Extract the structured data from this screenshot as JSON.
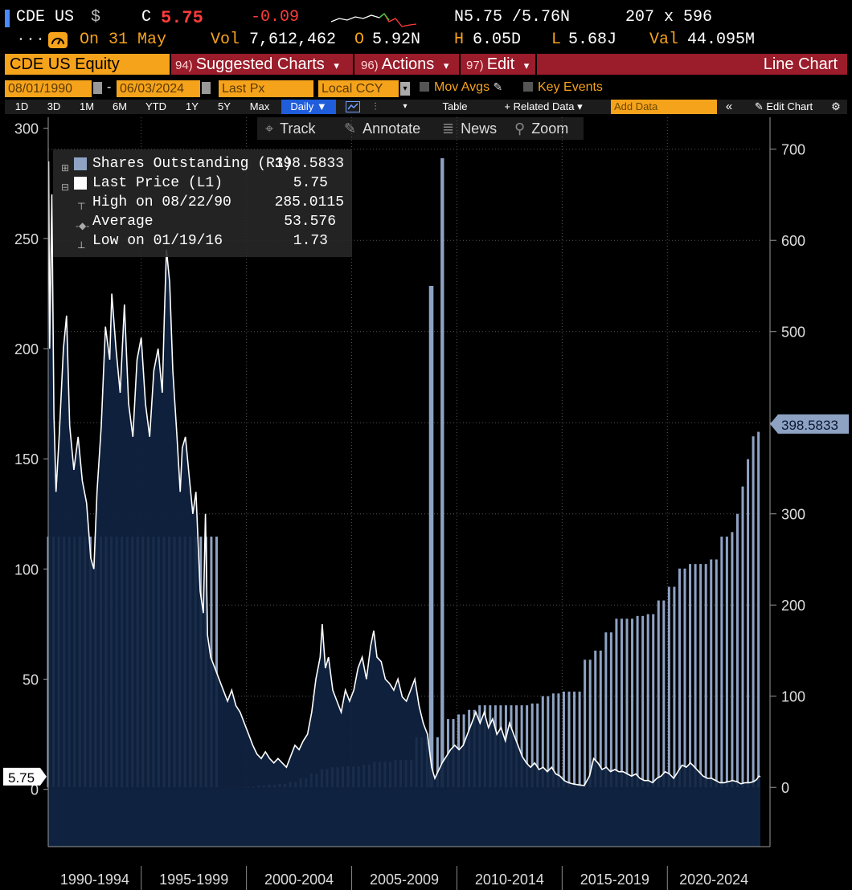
{
  "header": {
    "ticker": "CDE US",
    "currency_symbol": "$",
    "close_label": "C",
    "close_value": "5.75",
    "change": "-0.09",
    "bid_ask": "N5.75 /5.76N",
    "size": "207 x 596",
    "date_label": "On 31 May",
    "vol_label": "Vol",
    "vol_value": "7,612,462",
    "open_label": "O",
    "open_value": "5.92N",
    "high_label": "H",
    "high_value": "6.05D",
    "low_label": "L",
    "low_value": "5.68J",
    "val_label": "Val",
    "val_value": "44.095M",
    "dots": "....."
  },
  "menu": {
    "security": "CDE US Equity",
    "suggested_num": "94)",
    "suggested": "Suggested Charts",
    "actions_num": "96)",
    "actions": "Actions",
    "edit_num": "97)",
    "edit": "Edit",
    "chart_type": "Line Chart",
    "caret": "▾"
  },
  "controls": {
    "start_date": "08/01/1990",
    "dash": "-",
    "end_date": "06/03/2024",
    "field": "Last Px",
    "currency": "Local CCY",
    "mov_avgs": "Mov Avgs",
    "key_events": "Key Events"
  },
  "toolbar": {
    "periods": [
      "1D",
      "3D",
      "1M",
      "6M",
      "YTD",
      "1Y",
      "5Y",
      "Max"
    ],
    "frequency": "Daily ▼",
    "table": "Table",
    "related": "+ Related Data ▾",
    "add_data_placeholder": "Add Data",
    "edit_chart": "Edit Chart"
  },
  "chart_tools": {
    "track": "Track",
    "annotate": "Annotate",
    "news": "News",
    "zoom": "Zoom"
  },
  "legend": {
    "shares_label": "Shares Outstanding (R1)",
    "shares_value": "398.5833",
    "price_label": "Last Price (L1)",
    "price_value": "5.75",
    "high_label": "High on 08/22/90",
    "high_value": "285.0115",
    "avg_label": "Average",
    "avg_value": "53.576",
    "low_label": "Low on 01/19/16",
    "low_value": "1.73"
  },
  "colors": {
    "price_line": "#ffffff",
    "price_fill": "#0f2340",
    "shares_bars": "#8ea3c4",
    "accent_orange": "#f6a31c",
    "menu_red": "#9b1c2a"
  },
  "chart_data": {
    "type": "line",
    "left_axis": {
      "ticks": [
        0,
        50,
        100,
        150,
        200,
        250,
        300
      ],
      "ylim": [
        -26,
        305
      ]
    },
    "right_axis": {
      "ticks": [
        0,
        100,
        200,
        300,
        400,
        500,
        600,
        700
      ],
      "ylim": [
        -65,
        735
      ]
    },
    "x_categories": [
      "1990-1994",
      "1995-1999",
      "2000-2004",
      "2005-2009",
      "2010-2014",
      "2015-2019",
      "2020-2024"
    ],
    "x_range": [
      1990.58,
      2024.42
    ],
    "last_price_tag": "5.75",
    "shares_tag": "398.5833",
    "grid": "dotted",
    "series": [
      {
        "name": "Last Price (L1)",
        "axis": "left",
        "style": "line with filled area",
        "points": [
          [
            1990.6,
            285
          ],
          [
            1990.65,
            200
          ],
          [
            1990.75,
            270
          ],
          [
            1990.85,
            170
          ],
          [
            1990.95,
            135
          ],
          [
            1991.1,
            160
          ],
          [
            1991.3,
            200
          ],
          [
            1991.45,
            215
          ],
          [
            1991.6,
            165
          ],
          [
            1991.8,
            145
          ],
          [
            1992.0,
            160
          ],
          [
            1992.2,
            140
          ],
          [
            1992.4,
            130
          ],
          [
            1992.6,
            105
          ],
          [
            1992.75,
            100
          ],
          [
            1992.9,
            135
          ],
          [
            1993.1,
            165
          ],
          [
            1993.3,
            210
          ],
          [
            1993.5,
            195
          ],
          [
            1993.6,
            225
          ],
          [
            1993.8,
            200
          ],
          [
            1994.0,
            180
          ],
          [
            1994.2,
            220
          ],
          [
            1994.4,
            175
          ],
          [
            1994.6,
            160
          ],
          [
            1994.8,
            195
          ],
          [
            1995.0,
            205
          ],
          [
            1995.2,
            175
          ],
          [
            1995.4,
            160
          ],
          [
            1995.6,
            190
          ],
          [
            1995.8,
            200
          ],
          [
            1996.0,
            180
          ],
          [
            1996.1,
            215
          ],
          [
            1996.2,
            245
          ],
          [
            1996.35,
            230
          ],
          [
            1996.5,
            190
          ],
          [
            1996.7,
            160
          ],
          [
            1996.85,
            135
          ],
          [
            1996.95,
            155
          ],
          [
            1997.1,
            160
          ],
          [
            1997.3,
            140
          ],
          [
            1997.45,
            125
          ],
          [
            1997.6,
            135
          ],
          [
            1997.8,
            90
          ],
          [
            1997.95,
            80
          ],
          [
            1998.05,
            125
          ],
          [
            1998.15,
            70
          ],
          [
            1998.3,
            60
          ],
          [
            1998.5,
            55
          ],
          [
            1998.7,
            50
          ],
          [
            1998.9,
            45
          ],
          [
            1999.1,
            40
          ],
          [
            1999.3,
            45
          ],
          [
            1999.5,
            38
          ],
          [
            1999.7,
            35
          ],
          [
            1999.9,
            30
          ],
          [
            2000.1,
            25
          ],
          [
            2000.3,
            20
          ],
          [
            2000.5,
            16
          ],
          [
            2000.7,
            14
          ],
          [
            2000.9,
            17
          ],
          [
            2001.1,
            14
          ],
          [
            2001.3,
            12
          ],
          [
            2001.5,
            14
          ],
          [
            2001.7,
            12
          ],
          [
            2001.9,
            10
          ],
          [
            2002.1,
            15
          ],
          [
            2002.3,
            20
          ],
          [
            2002.5,
            18
          ],
          [
            2002.7,
            22
          ],
          [
            2002.9,
            25
          ],
          [
            2003.1,
            35
          ],
          [
            2003.3,
            50
          ],
          [
            2003.5,
            60
          ],
          [
            2003.6,
            75
          ],
          [
            2003.75,
            55
          ],
          [
            2003.9,
            60
          ],
          [
            2004.1,
            45
          ],
          [
            2004.3,
            40
          ],
          [
            2004.5,
            35
          ],
          [
            2004.7,
            45
          ],
          [
            2004.9,
            40
          ],
          [
            2005.1,
            45
          ],
          [
            2005.3,
            55
          ],
          [
            2005.5,
            60
          ],
          [
            2005.7,
            50
          ],
          [
            2005.9,
            65
          ],
          [
            2006.05,
            72
          ],
          [
            2006.2,
            60
          ],
          [
            2006.4,
            58
          ],
          [
            2006.6,
            50
          ],
          [
            2006.8,
            48
          ],
          [
            2007.0,
            45
          ],
          [
            2007.2,
            50
          ],
          [
            2007.4,
            42
          ],
          [
            2007.6,
            40
          ],
          [
            2007.8,
            45
          ],
          [
            2008.0,
            50
          ],
          [
            2008.2,
            38
          ],
          [
            2008.4,
            30
          ],
          [
            2008.6,
            25
          ],
          [
            2008.8,
            10
          ],
          [
            2008.95,
            5
          ],
          [
            2009.1,
            8
          ],
          [
            2009.3,
            12
          ],
          [
            2009.5,
            15
          ],
          [
            2009.7,
            18
          ],
          [
            2009.9,
            20
          ],
          [
            2010.1,
            18
          ],
          [
            2010.3,
            20
          ],
          [
            2010.5,
            25
          ],
          [
            2010.7,
            30
          ],
          [
            2010.9,
            35
          ],
          [
            2011.1,
            30
          ],
          [
            2011.3,
            35
          ],
          [
            2011.5,
            28
          ],
          [
            2011.7,
            32
          ],
          [
            2011.9,
            25
          ],
          [
            2012.1,
            28
          ],
          [
            2012.3,
            22
          ],
          [
            2012.5,
            30
          ],
          [
            2012.7,
            25
          ],
          [
            2012.9,
            20
          ],
          [
            2013.1,
            15
          ],
          [
            2013.3,
            12
          ],
          [
            2013.5,
            10
          ],
          [
            2013.7,
            12
          ],
          [
            2013.9,
            9
          ],
          [
            2014.1,
            10
          ],
          [
            2014.3,
            8
          ],
          [
            2014.5,
            10
          ],
          [
            2014.7,
            7
          ],
          [
            2014.9,
            6
          ],
          [
            2015.1,
            4
          ],
          [
            2015.3,
            3
          ],
          [
            2015.5,
            2.5
          ],
          [
            2015.8,
            2
          ],
          [
            2016.05,
            1.73
          ],
          [
            2016.3,
            6
          ],
          [
            2016.5,
            14
          ],
          [
            2016.7,
            12
          ],
          [
            2016.9,
            9
          ],
          [
            2017.1,
            10
          ],
          [
            2017.3,
            8
          ],
          [
            2017.5,
            9
          ],
          [
            2017.7,
            8
          ],
          [
            2017.9,
            8
          ],
          [
            2018.1,
            7
          ],
          [
            2018.3,
            6
          ],
          [
            2018.5,
            7
          ],
          [
            2018.7,
            5
          ],
          [
            2018.9,
            4
          ],
          [
            2019.1,
            4
          ],
          [
            2019.3,
            3
          ],
          [
            2019.5,
            5
          ],
          [
            2019.7,
            6
          ],
          [
            2019.9,
            8
          ],
          [
            2020.1,
            7
          ],
          [
            2020.3,
            5
          ],
          [
            2020.5,
            8
          ],
          [
            2020.7,
            11
          ],
          [
            2020.9,
            10
          ],
          [
            2021.1,
            12
          ],
          [
            2021.3,
            10
          ],
          [
            2021.5,
            8
          ],
          [
            2021.7,
            6
          ],
          [
            2021.9,
            5
          ],
          [
            2022.1,
            5
          ],
          [
            2022.3,
            4
          ],
          [
            2022.5,
            3
          ],
          [
            2022.7,
            3
          ],
          [
            2022.9,
            3.5
          ],
          [
            2023.1,
            4
          ],
          [
            2023.3,
            3.5
          ],
          [
            2023.5,
            2.5
          ],
          [
            2023.7,
            3
          ],
          [
            2023.9,
            3
          ],
          [
            2024.1,
            3.5
          ],
          [
            2024.25,
            4.5
          ],
          [
            2024.35,
            6
          ],
          [
            2024.42,
            5.75
          ]
        ]
      },
      {
        "name": "Shares Outstanding (R1)",
        "axis": "right",
        "style": "bars",
        "points": [
          [
            1990.6,
            275
          ],
          [
            1991,
            275
          ],
          [
            1992,
            275
          ],
          [
            1993,
            275
          ],
          [
            1994,
            275
          ],
          [
            1995,
            275
          ],
          [
            1996,
            275
          ],
          [
            1997,
            275
          ],
          [
            1998,
            275
          ],
          [
            1998.6,
            0
          ],
          [
            1999.5,
            0.5
          ],
          [
            2000,
            1
          ],
          [
            2000.5,
            2
          ],
          [
            2001,
            3
          ],
          [
            2001.5,
            4
          ],
          [
            2002,
            6
          ],
          [
            2002.5,
            10
          ],
          [
            2003,
            15
          ],
          [
            2003.5,
            20
          ],
          [
            2004,
            22
          ],
          [
            2004.5,
            23
          ],
          [
            2005,
            23
          ],
          [
            2005.5,
            25
          ],
          [
            2006,
            28
          ],
          [
            2006.5,
            28
          ],
          [
            2007,
            30
          ],
          [
            2007.5,
            30
          ],
          [
            2008,
            55
          ],
          [
            2008.5,
            55
          ],
          [
            2008.75,
            550
          ],
          [
            2009,
            55
          ],
          [
            2009.2,
            70
          ],
          [
            2009.3,
            690
          ],
          [
            2009.5,
            75
          ],
          [
            2010,
            80
          ],
          [
            2010.5,
            85
          ],
          [
            2011,
            90
          ],
          [
            2011.5,
            90
          ],
          [
            2012,
            90
          ],
          [
            2012.5,
            90
          ],
          [
            2013,
            90
          ],
          [
            2013.5,
            92
          ],
          [
            2014,
            100
          ],
          [
            2014.5,
            103
          ],
          [
            2015,
            105
          ],
          [
            2015.5,
            105
          ],
          [
            2016,
            140
          ],
          [
            2016.5,
            150
          ],
          [
            2017,
            170
          ],
          [
            2017.5,
            185
          ],
          [
            2018,
            185
          ],
          [
            2018.5,
            188
          ],
          [
            2019,
            190
          ],
          [
            2019.5,
            205
          ],
          [
            2020,
            220
          ],
          [
            2020.5,
            240
          ],
          [
            2021,
            245
          ],
          [
            2021.5,
            245
          ],
          [
            2022,
            250
          ],
          [
            2022.5,
            275
          ],
          [
            2023,
            280
          ],
          [
            2023.3,
            300
          ],
          [
            2023.5,
            330
          ],
          [
            2023.75,
            360
          ],
          [
            2024,
            385
          ],
          [
            2024.2,
            390
          ],
          [
            2024.42,
            398.5833
          ]
        ]
      }
    ]
  }
}
